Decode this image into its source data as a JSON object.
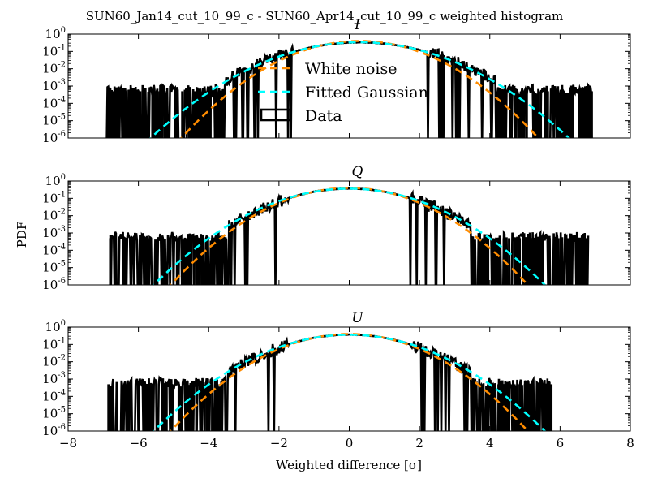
{
  "chart_data": {
    "type": "histogram",
    "title": "SUN60_Jan14_cut_10_99_c - SUN60_Apr14_cut_10_99_c weighted histogram",
    "xlabel": "Weighted difference [σ]",
    "ylabel": "PDF",
    "xlim": [
      -8,
      8
    ],
    "ylim": [
      1e-06,
      1
    ],
    "yscale": "log",
    "x_ticks": [
      {
        "value": -8,
        "label": "−8"
      },
      {
        "value": -6,
        "label": "−6"
      },
      {
        "value": -4,
        "label": "−4"
      },
      {
        "value": -2,
        "label": "−2"
      },
      {
        "value": 0,
        "label": "0"
      },
      {
        "value": 2,
        "label": "2"
      },
      {
        "value": 4,
        "label": "4"
      },
      {
        "value": 6,
        "label": "6"
      },
      {
        "value": 8,
        "label": "8"
      }
    ],
    "y_ticks": [
      {
        "exp": 0,
        "base": "10",
        "sup": "0"
      },
      {
        "exp": -1,
        "base": "10",
        "sup": "-1"
      },
      {
        "exp": -2,
        "base": "10",
        "sup": "-2"
      },
      {
        "exp": -3,
        "base": "10",
        "sup": "-3"
      },
      {
        "exp": -4,
        "base": "10",
        "sup": "-4"
      },
      {
        "exp": -5,
        "base": "10",
        "sup": "-5"
      },
      {
        "exp": -6,
        "base": "10",
        "sup": "-6"
      }
    ],
    "legend": {
      "placement": "upper-center (top panel)",
      "entries": [
        {
          "label": "White noise",
          "color": "#ff8c00",
          "style": "dashed"
        },
        {
          "label": "Fitted Gaussian",
          "color": "#00ffff",
          "style": "dashed"
        },
        {
          "label": "Data",
          "color": "#000000",
          "style": "box"
        }
      ]
    },
    "colors": {
      "white_noise": "#ff8c00",
      "fitted_gaussian": "#00ffff",
      "data": "#000000"
    },
    "panels": [
      {
        "name": "I",
        "white_noise": {
          "mean": 0.3,
          "sigma": 1.0
        },
        "fitted_gaussian": {
          "mean": 0.3,
          "sigma": 1.18
        },
        "data_range": [
          -6.9,
          6.9
        ],
        "core_sigma": 1.2,
        "outliers": [
          -6.85,
          -6.7,
          -6.2,
          -5.95,
          -5.6,
          -5.4,
          -5.25,
          -4.95,
          -4.75,
          -4.55,
          -4.4,
          -4.25,
          -4.1,
          -3.95,
          -3.8,
          4.3,
          4.45,
          4.6,
          4.75,
          4.9,
          5.05,
          5.25,
          5.45,
          5.65,
          5.9,
          6.1,
          6.35,
          6.55,
          6.75,
          6.9
        ]
      },
      {
        "name": "Q",
        "white_noise": {
          "mean": 0.0,
          "sigma": 1.0
        },
        "fitted_gaussian": {
          "mean": 0.0,
          "sigma": 1.1
        },
        "data_range": [
          -6.8,
          6.8
        ],
        "core_sigma": 1.08,
        "outliers": [
          -6.8,
          -4.9,
          -4.65,
          -4.5,
          -4.35,
          -4.2,
          -4.05,
          -3.9,
          -3.75,
          3.8,
          3.95,
          4.1,
          4.25,
          4.4,
          4.55,
          4.7,
          4.85,
          5.0,
          5.15,
          5.3,
          5.5,
          5.7,
          5.95,
          6.2,
          6.5,
          6.75
        ]
      },
      {
        "name": "U",
        "white_noise": {
          "mean": 0.0,
          "sigma": 1.0
        },
        "fitted_gaussian": {
          "mean": 0.0,
          "sigma": 1.1
        },
        "data_range": [
          -6.8,
          5.8
        ],
        "core_sigma": 1.08,
        "outliers": [
          -6.85,
          -5.2,
          -5.05,
          -4.85,
          -4.65,
          -4.5,
          -4.35,
          -4.2,
          -4.05,
          -3.9,
          -3.75,
          3.8,
          3.95,
          4.1,
          4.25,
          4.4,
          4.55,
          4.7,
          4.85,
          5.0,
          5.2,
          5.75
        ]
      }
    ]
  }
}
